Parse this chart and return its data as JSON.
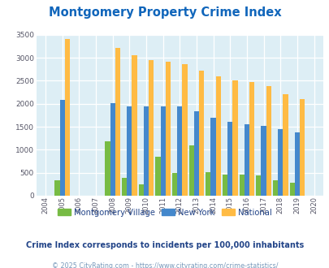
{
  "title": "Montgomery Property Crime Index",
  "years": [
    2004,
    2005,
    2006,
    2007,
    2008,
    2009,
    2010,
    2011,
    2012,
    2013,
    2014,
    2015,
    2016,
    2017,
    2018,
    2019,
    2020
  ],
  "montgomery_village": [
    0,
    330,
    0,
    0,
    1180,
    380,
    250,
    850,
    500,
    1090,
    510,
    450,
    450,
    440,
    340,
    280,
    0
  ],
  "new_york": [
    0,
    2090,
    0,
    0,
    2010,
    1940,
    1950,
    1940,
    1940,
    1830,
    1700,
    1600,
    1560,
    1510,
    1450,
    1370,
    0
  ],
  "national": [
    0,
    3410,
    0,
    0,
    3220,
    3050,
    2950,
    2910,
    2860,
    2720,
    2590,
    2500,
    2470,
    2380,
    2200,
    2110,
    0
  ],
  "mv_color": "#77bb44",
  "ny_color": "#4488cc",
  "nat_color": "#ffbb44",
  "plot_bg": "#ddeef5",
  "title_color": "#1166bb",
  "ylim": [
    0,
    3500
  ],
  "yticks": [
    0,
    500,
    1000,
    1500,
    2000,
    2500,
    3000,
    3500
  ],
  "subtitle": "Crime Index corresponds to incidents per 100,000 inhabitants",
  "footer": "© 2025 CityRating.com - https://www.cityrating.com/crime-statistics/",
  "subtitle_color": "#224488",
  "footer_color": "#7799bb"
}
